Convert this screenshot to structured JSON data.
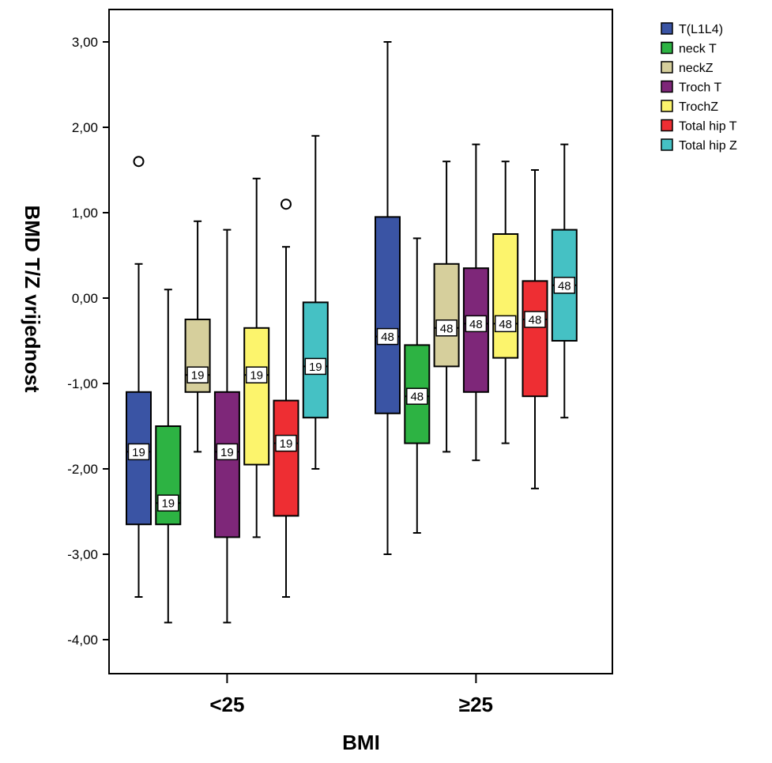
{
  "chart_data": {
    "type": "boxplot",
    "xlabel": "BMI",
    "ylabel": "BMD T/Z vrijednost",
    "ylim": [
      -4.5,
      3.5
    ],
    "yticks": [
      -4,
      -3,
      -2,
      -1,
      0,
      1,
      2,
      3
    ],
    "ytick_labels": [
      "-4,00",
      "-3,00",
      "-2,00",
      "-1,00",
      "0,00",
      "1,00",
      "2,00",
      "3,00"
    ],
    "categories": [
      "<25",
      "≥25"
    ],
    "legend_position": "right",
    "series": [
      {
        "name": "T(L1L4)",
        "color": "#3A54A4",
        "boxes": [
          {
            "min": -3.5,
            "q1": -2.65,
            "median": -1.8,
            "q3": -1.1,
            "max": 0.4,
            "n": "19",
            "outliers": [
              1.6
            ]
          },
          {
            "min": -3.0,
            "q1": -1.35,
            "median": -0.45,
            "q3": 0.95,
            "max": 3.0,
            "n": "48",
            "outliers": []
          }
        ]
      },
      {
        "name": "neck T",
        "color": "#2DB343",
        "boxes": [
          {
            "min": -3.8,
            "q1": -2.65,
            "median": -2.4,
            "q3": -1.5,
            "max": 0.1,
            "n": "19",
            "outliers": []
          },
          {
            "min": -2.75,
            "q1": -1.7,
            "median": -1.15,
            "q3": -0.55,
            "max": 0.7,
            "n": "48",
            "outliers": []
          }
        ]
      },
      {
        "name": "neckZ",
        "color": "#D6CF9C",
        "boxes": [
          {
            "min": -1.8,
            "q1": -1.1,
            "median": -0.9,
            "q3": -0.25,
            "max": 0.9,
            "n": "19",
            "outliers": []
          },
          {
            "min": -1.8,
            "q1": -0.8,
            "median": -0.35,
            "q3": 0.4,
            "max": 1.6,
            "n": "48",
            "outliers": []
          }
        ]
      },
      {
        "name": "Troch T",
        "color": "#7E2779",
        "boxes": [
          {
            "min": -3.8,
            "q1": -2.8,
            "median": -1.8,
            "q3": -1.1,
            "max": 0.8,
            "n": "19",
            "outliers": []
          },
          {
            "min": -1.9,
            "q1": -1.1,
            "median": -0.3,
            "q3": 0.35,
            "max": 1.8,
            "n": "48",
            "outliers": []
          }
        ]
      },
      {
        "name": "TrochZ",
        "color": "#FCF46C",
        "boxes": [
          {
            "min": -2.8,
            "q1": -1.95,
            "median": -0.9,
            "q3": -0.35,
            "max": 1.4,
            "n": "19",
            "outliers": []
          },
          {
            "min": -1.7,
            "q1": -0.7,
            "median": -0.3,
            "q3": 0.75,
            "max": 1.6,
            "n": "48",
            "outliers": []
          }
        ]
      },
      {
        "name": "Total hip T",
        "color": "#EE2E33",
        "boxes": [
          {
            "min": -3.5,
            "q1": -2.55,
            "median": -1.7,
            "q3": -1.2,
            "max": 0.6,
            "n": "19",
            "outliers": [
              1.1
            ]
          },
          {
            "min": -2.23,
            "q1": -1.15,
            "median": -0.25,
            "q3": 0.2,
            "max": 1.5,
            "n": "48",
            "outliers": []
          }
        ]
      },
      {
        "name": "Total hip Z",
        "color": "#45C1C4",
        "boxes": [
          {
            "min": -2.0,
            "q1": -1.4,
            "median": -0.8,
            "q3": -0.05,
            "max": 1.9,
            "n": "19",
            "outliers": []
          },
          {
            "min": -1.4,
            "q1": -0.5,
            "median": 0.15,
            "q3": 0.8,
            "max": 1.8,
            "n": "48",
            "outliers": []
          }
        ]
      }
    ]
  }
}
